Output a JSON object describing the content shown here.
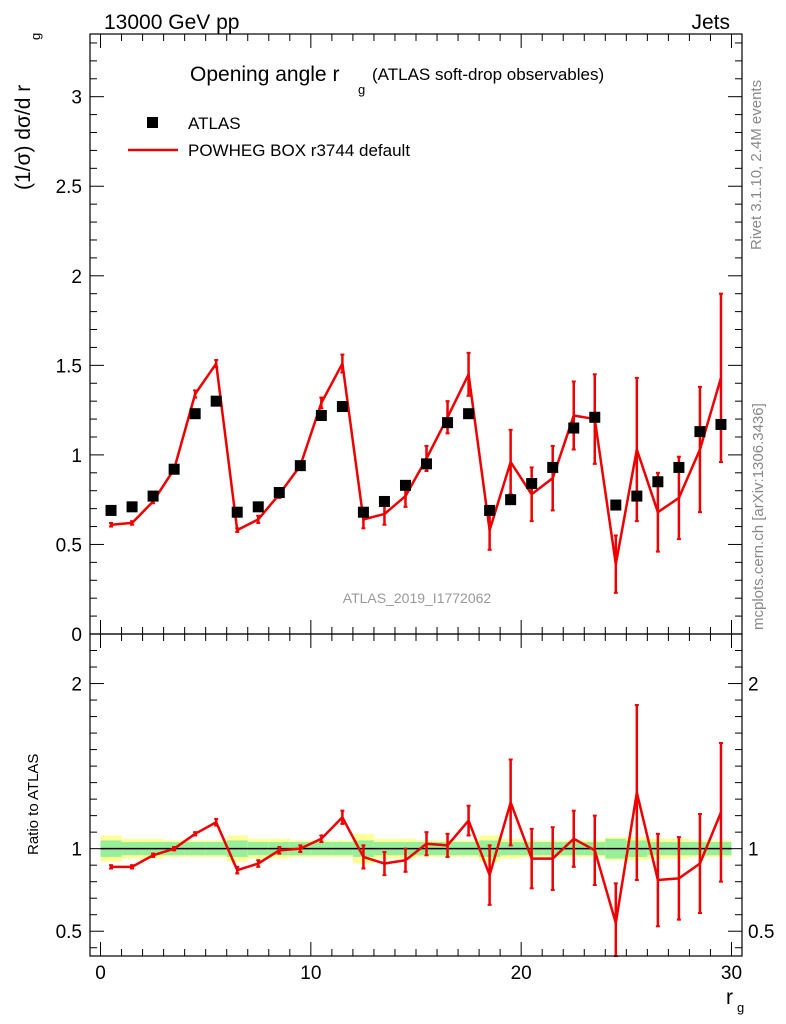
{
  "header": {
    "left": "13000 GeV pp",
    "right": "Jets"
  },
  "side_labels": {
    "rivet": "Rivet 3.1.10,  2.4M events",
    "mcplots": "mcplots.cern.ch [arXiv:1306.3436]"
  },
  "watermark": "ATLAS_2019_I1772062",
  "colors": {
    "data": "#000000",
    "mc": "#ee0000",
    "band_inner": "#99ee99",
    "band_outer": "#ffff99",
    "ref_line": "#000000"
  },
  "chart_data": [
    {
      "type": "scatter",
      "title": "Opening angle r",
      "title_sub": "g",
      "title_extra": "(ATLAS soft-drop observables)",
      "ylabel": "(1/σ) dσ/d r",
      "ylabel_sub": "g",
      "xlim": [
        -0.5,
        30.5
      ],
      "ylim": [
        0,
        3.35
      ],
      "yticks": [
        0,
        0.5,
        1,
        1.5,
        2,
        2.5,
        3
      ],
      "ytick_labels": [
        "0",
        "0.5",
        "1",
        "1.5",
        "2",
        "2.5",
        "3"
      ],
      "legend": {
        "position": "top-left",
        "entries": [
          "ATLAS",
          "POWHEG BOX r3744 default"
        ]
      },
      "series": [
        {
          "name": "ATLAS",
          "x": [
            0.5,
            1.5,
            2.5,
            3.5,
            4.5,
            5.5,
            6.5,
            7.5,
            8.5,
            9.5,
            10.5,
            11.5,
            12.5,
            13.5,
            14.5,
            15.5,
            16.5,
            17.5,
            18.5,
            19.5,
            20.5,
            21.5,
            22.5,
            23.5,
            24.5,
            25.5,
            26.5,
            27.5,
            28.5,
            29.5
          ],
          "values": [
            0.69,
            0.71,
            0.77,
            0.92,
            1.23,
            1.3,
            0.68,
            0.71,
            0.79,
            0.94,
            1.22,
            1.27,
            0.68,
            0.74,
            0.83,
            0.95,
            1.18,
            1.23,
            0.69,
            0.75,
            0.84,
            0.93,
            1.15,
            1.21,
            0.72,
            0.77,
            0.85,
            0.93,
            1.13,
            1.17
          ]
        },
        {
          "name": "POWHEG BOX r3744 default",
          "x": [
            0.5,
            1.5,
            2.5,
            3.5,
            4.5,
            5.5,
            6.5,
            7.5,
            8.5,
            9.5,
            10.5,
            11.5,
            12.5,
            13.5,
            14.5,
            15.5,
            16.5,
            17.5,
            18.5,
            19.5,
            20.5,
            21.5,
            22.5,
            23.5,
            24.5,
            25.5,
            26.5,
            27.5,
            28.5,
            29.5
          ],
          "values": [
            0.61,
            0.62,
            0.74,
            0.92,
            1.34,
            1.51,
            0.58,
            0.64,
            0.78,
            0.94,
            1.29,
            1.51,
            0.64,
            0.67,
            0.77,
            0.98,
            1.21,
            1.45,
            0.58,
            0.96,
            0.78,
            0.87,
            1.22,
            1.2,
            0.39,
            1.03,
            0.68,
            0.76,
            1.03,
            1.43
          ],
          "errors": [
            0.01,
            0.01,
            0.01,
            0.01,
            0.02,
            0.02,
            0.01,
            0.02,
            0.02,
            0.02,
            0.03,
            0.05,
            0.05,
            0.06,
            0.06,
            0.07,
            0.09,
            0.12,
            0.11,
            0.18,
            0.15,
            0.18,
            0.19,
            0.25,
            0.16,
            0.4,
            0.22,
            0.23,
            0.35,
            0.47
          ]
        }
      ]
    },
    {
      "type": "line",
      "ylabel": "Ratio to ATLAS",
      "xlabel": "r",
      "xlabel_sub": "g",
      "xlim": [
        -0.5,
        30.5
      ],
      "ylim": [
        0.35,
        2.3
      ],
      "xticks": [
        0,
        10,
        20,
        30
      ],
      "xtick_labels": [
        "0",
        "10",
        "20",
        "30"
      ],
      "yticks": [
        0.5,
        1,
        2
      ],
      "ytick_labels": [
        "0.5",
        "1",
        "2"
      ],
      "band_inner": [
        0.05,
        0.04,
        0.04,
        0.04,
        0.04,
        0.04,
        0.05,
        0.04,
        0.04,
        0.04,
        0.04,
        0.04,
        0.05,
        0.04,
        0.04,
        0.04,
        0.04,
        0.04,
        0.05,
        0.04,
        0.04,
        0.04,
        0.04,
        0.04,
        0.06,
        0.05,
        0.04,
        0.04,
        0.04,
        0.04
      ],
      "band_outer": [
        0.08,
        0.06,
        0.06,
        0.05,
        0.05,
        0.05,
        0.08,
        0.06,
        0.06,
        0.05,
        0.05,
        0.05,
        0.09,
        0.06,
        0.06,
        0.05,
        0.05,
        0.05,
        0.08,
        0.06,
        0.05,
        0.05,
        0.05,
        0.05,
        0.07,
        0.07,
        0.06,
        0.06,
        0.05,
        0.05
      ],
      "series": [
        {
          "name": "POWHEG BOX r3744 default / ATLAS",
          "x": [
            0.5,
            1.5,
            2.5,
            3.5,
            4.5,
            5.5,
            6.5,
            7.5,
            8.5,
            9.5,
            10.5,
            11.5,
            12.5,
            13.5,
            14.5,
            15.5,
            16.5,
            17.5,
            18.5,
            19.5,
            20.5,
            21.5,
            22.5,
            23.5,
            24.5,
            25.5,
            26.5,
            27.5,
            28.5,
            29.5
          ],
          "values": [
            0.89,
            0.89,
            0.96,
            1.0,
            1.09,
            1.16,
            0.87,
            0.91,
            0.99,
            1.0,
            1.06,
            1.19,
            0.95,
            0.91,
            0.93,
            1.03,
            1.02,
            1.17,
            0.84,
            1.28,
            0.94,
            0.94,
            1.06,
            0.99,
            0.55,
            1.34,
            0.81,
            0.82,
            0.91,
            1.22
          ],
          "errors": [
            0.01,
            0.01,
            0.01,
            0.01,
            0.01,
            0.02,
            0.02,
            0.02,
            0.02,
            0.02,
            0.02,
            0.04,
            0.07,
            0.07,
            0.07,
            0.07,
            0.07,
            0.09,
            0.18,
            0.26,
            0.18,
            0.19,
            0.17,
            0.21,
            0.24,
            0.53,
            0.28,
            0.25,
            0.3,
            0.42
          ]
        }
      ]
    }
  ]
}
